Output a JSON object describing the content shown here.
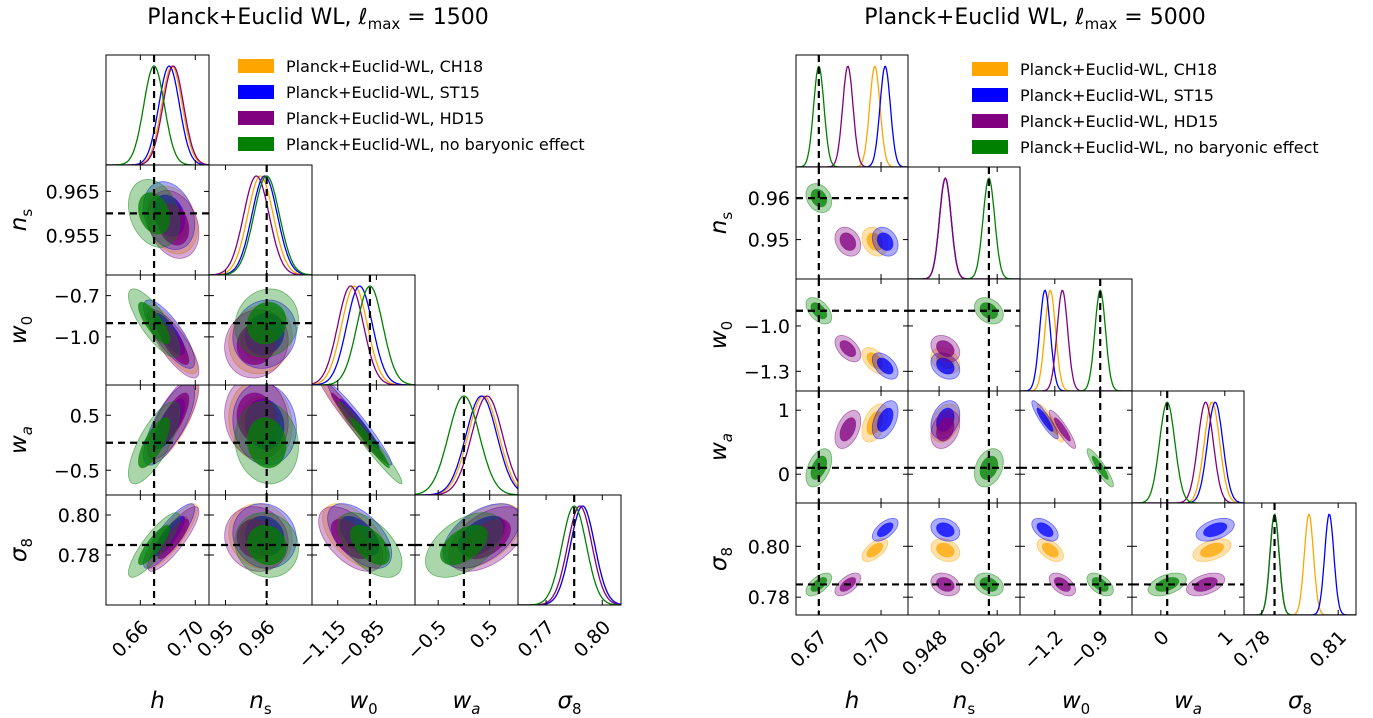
{
  "figure": {
    "colors": {
      "CH18": "#FFA500",
      "ST15": "#0000FF",
      "HD15": "#800080",
      "none": "#008000"
    },
    "legend": [
      {
        "key": "CH18",
        "label": "Planck+Euclid-WL, CH18"
      },
      {
        "key": "ST15",
        "label": "Planck+Euclid-WL, ST15"
      },
      {
        "key": "HD15",
        "label": "Planck+Euclid-WL, HD15"
      },
      {
        "key": "none",
        "label": "Planck+Euclid-WL, no baryonic effect"
      }
    ],
    "param_labels": [
      "h",
      "n_s",
      "w_0",
      "w_a",
      "σ_8"
    ]
  },
  "chart_data": [
    {
      "type": "corner",
      "title": "Planck+Euclid WL, ℓmax = 1500",
      "title_parts": {
        "prefix": "Planck+Euclid WL, ",
        "ell": "ℓ",
        "sub": "max",
        "suffix": " = 1500"
      },
      "legend_position": "top-right",
      "truth": {
        "h": 0.67,
        "n_s": 0.96,
        "w_0": -0.9,
        "w_a": 0.0,
        "sigma_8": 0.785
      },
      "ranges": {
        "h": [
          0.635,
          0.71
        ],
        "n_s": [
          0.946,
          0.971
        ],
        "w_0": [
          -1.35,
          -0.55
        ],
        "w_a": [
          -0.95,
          1.05
        ],
        "sigma_8": [
          0.755,
          0.81
        ]
      },
      "ticks": {
        "h": {
          "values": [
            0.66,
            0.7
          ],
          "labels": [
            "0.66",
            "0.70"
          ]
        },
        "n_s": {
          "values": [
            0.95,
            0.96
          ],
          "labels": [
            "0.95",
            "0.96"
          ]
        },
        "w_0": {
          "values": [
            -1.15,
            -0.85
          ],
          "labels": [
            "−1.15",
            "−0.85"
          ]
        },
        "w_a": {
          "values": [
            -0.5,
            0.5
          ],
          "labels": [
            "−0.5",
            "0.5"
          ]
        },
        "sigma_8": {
          "values": [
            0.77,
            0.8
          ],
          "labels": [
            "0.77",
            "0.80"
          ]
        }
      },
      "ytick_labels": {
        "n_s": {
          "values": [
            0.965,
            0.955
          ],
          "labels": [
            "0.965",
            "0.955"
          ]
        },
        "w_0": {
          "values": [
            -0.7,
            -1.0
          ],
          "labels": [
            "−0.7",
            "−1.0"
          ]
        },
        "w_a": {
          "values": [
            0.5,
            -0.5
          ],
          "labels": [
            "0.5",
            "−0.5"
          ]
        },
        "sigma_8": {
          "values": [
            0.8,
            0.78
          ],
          "labels": [
            "0.80",
            "0.78"
          ]
        }
      },
      "series": [
        {
          "key": "CH18",
          "mean": {
            "h": 0.683,
            "n_s": 0.9585,
            "w_0": -1.02,
            "w_a": 0.38,
            "sigma_8": 0.7895
          },
          "sigma": {
            "h": 0.0075,
            "n_s": 0.0031,
            "w_0": 0.1,
            "w_a": 0.3,
            "sigma_8": 0.0065
          }
        },
        {
          "key": "ST15",
          "mean": {
            "h": 0.681,
            "n_s": 0.9595,
            "w_0": -0.98,
            "w_a": 0.34,
            "sigma_8": 0.7895
          },
          "sigma": {
            "h": 0.0075,
            "n_s": 0.0031,
            "w_0": 0.1,
            "w_a": 0.3,
            "sigma_8": 0.0065
          }
        },
        {
          "key": "HD15",
          "mean": {
            "h": 0.684,
            "n_s": 0.9575,
            "w_0": -1.05,
            "w_a": 0.45,
            "sigma_8": 0.788
          },
          "sigma": {
            "h": 0.0075,
            "n_s": 0.0031,
            "w_0": 0.1,
            "w_a": 0.3,
            "sigma_8": 0.0065
          }
        },
        {
          "key": "none",
          "mean": {
            "h": 0.67,
            "n_s": 0.96,
            "w_0": -0.9,
            "w_a": 0.0,
            "sigma_8": 0.785
          },
          "sigma": {
            "h": 0.0075,
            "n_s": 0.0031,
            "w_0": 0.1,
            "w_a": 0.3,
            "sigma_8": 0.0065
          }
        }
      ],
      "correlations": {
        "h|n_s": -0.25,
        "h|w_0": -0.8,
        "h|w_a": 0.75,
        "h|sigma_8": 0.85,
        "n_s|w_0": 0.1,
        "n_s|w_a": -0.1,
        "n_s|sigma_8": -0.1,
        "w_0|w_a": -0.97,
        "w_0|sigma_8": -0.55,
        "w_a|sigma_8": 0.5
      }
    },
    {
      "type": "corner",
      "title": "Planck+Euclid WL, ℓmax = 5000",
      "title_parts": {
        "prefix": "Planck+Euclid WL, ",
        "ell": "ℓ",
        "sub": "max",
        "suffix": " = 5000"
      },
      "legend_position": "top-right",
      "truth": {
        "h": 0.67,
        "n_s": 0.96,
        "w_0": -0.9,
        "w_a": 0.1,
        "sigma_8": 0.785
      },
      "ranges": {
        "h": [
          0.659,
          0.713
        ],
        "n_s": [
          0.9405,
          0.9675
        ],
        "w_0": [
          -1.43,
          -0.69
        ],
        "w_a": [
          -0.45,
          1.3
        ],
        "sigma_8": [
          0.773,
          0.817
        ]
      },
      "ticks": {
        "h": {
          "values": [
            0.67,
            0.7
          ],
          "labels": [
            "0.67",
            "0.70"
          ]
        },
        "n_s": {
          "values": [
            0.948,
            0.962
          ],
          "labels": [
            "0.948",
            "0.962"
          ]
        },
        "w_0": {
          "values": [
            -1.2,
            -0.9
          ],
          "labels": [
            "−1.2",
            "−0.9"
          ]
        },
        "w_a": {
          "values": [
            0,
            1
          ],
          "labels": [
            "0",
            "1"
          ]
        },
        "sigma_8": {
          "values": [
            0.78,
            0.81
          ],
          "labels": [
            "0.78",
            "0.81"
          ]
        }
      },
      "ytick_labels": {
        "n_s": {
          "values": [
            0.96,
            0.95
          ],
          "labels": [
            "0.96",
            "0.95"
          ]
        },
        "w_0": {
          "values": [
            -1.0,
            -1.3
          ],
          "labels": [
            "−1.0",
            "−1.3"
          ]
        },
        "w_a": {
          "values": [
            1,
            0
          ],
          "labels": [
            "1",
            "0"
          ]
        },
        "sigma_8": {
          "values": [
            0.8,
            0.78
          ],
          "labels": [
            "0.80",
            "0.78"
          ]
        }
      },
      "series": [
        {
          "key": "CH18",
          "mean": {
            "h": 0.697,
            "n_s": 0.9495,
            "w_0": -1.23,
            "w_a": 0.8,
            "sigma_8": 0.7985
          },
          "sigma": {
            "h": 0.0025,
            "n_s": 0.0014,
            "w_0": 0.035,
            "w_a": 0.12,
            "sigma_8": 0.0018
          }
        },
        {
          "key": "ST15",
          "mean": {
            "h": 0.702,
            "n_s": 0.9495,
            "w_0": -1.265,
            "w_a": 0.85,
            "sigma_8": 0.8065
          },
          "sigma": {
            "h": 0.0025,
            "n_s": 0.0014,
            "w_0": 0.035,
            "w_a": 0.12,
            "sigma_8": 0.0018
          }
        },
        {
          "key": "HD15",
          "mean": {
            "h": 0.684,
            "n_s": 0.9495,
            "w_0": -1.15,
            "w_a": 0.7,
            "sigma_8": 0.785
          },
          "sigma": {
            "h": 0.0025,
            "n_s": 0.0014,
            "w_0": 0.035,
            "w_a": 0.12,
            "sigma_8": 0.0018
          }
        },
        {
          "key": "none",
          "mean": {
            "h": 0.67,
            "n_s": 0.96,
            "w_0": -0.9,
            "w_a": 0.1,
            "sigma_8": 0.785
          },
          "sigma": {
            "h": 0.0025,
            "n_s": 0.0014,
            "w_0": 0.035,
            "w_a": 0.12,
            "sigma_8": 0.0018
          }
        }
      ],
      "correlations": {
        "h|n_s": -0.25,
        "h|w_0": -0.5,
        "h|w_a": 0.45,
        "h|sigma_8": 0.6,
        "n_s|w_0": -0.3,
        "n_s|w_a": 0.3,
        "n_s|sigma_8": -0.25,
        "w_0|w_a": -0.9,
        "w_0|sigma_8": -0.5,
        "w_a|sigma_8": 0.45
      }
    }
  ]
}
